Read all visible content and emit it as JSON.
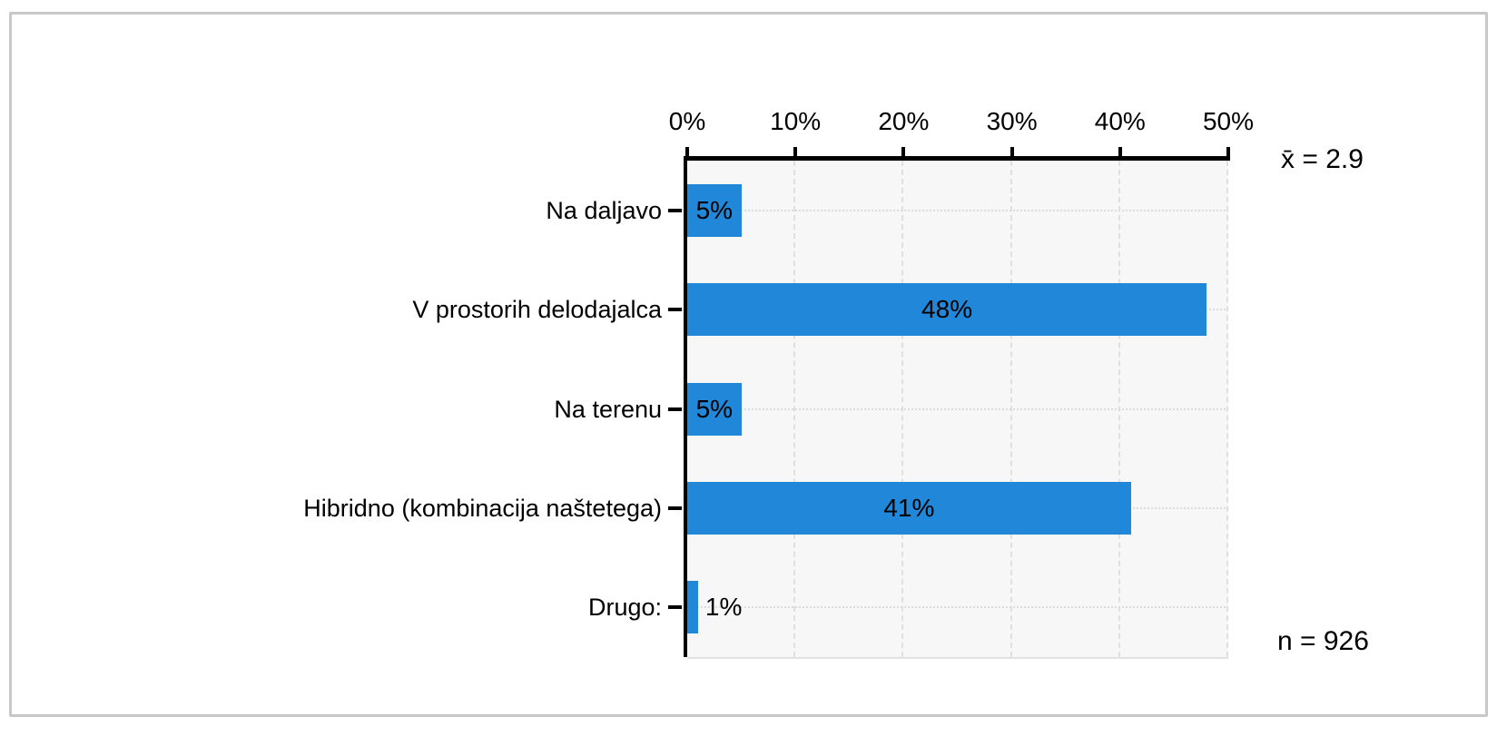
{
  "chart_data": {
    "type": "bar",
    "orientation": "horizontal",
    "title": "",
    "categories": [
      "Na daljavo",
      "V prostorih delodajalca",
      "Na terenu",
      "Hibridno (kombinacija naštetega)",
      "Drugo:"
    ],
    "values": [
      5,
      48,
      5,
      41,
      1
    ],
    "value_labels": [
      "5%",
      "48%",
      "5%",
      "41%",
      "1%"
    ],
    "xlim": [
      0,
      50
    ],
    "x_tick_values": [
      0,
      10,
      20,
      30,
      40,
      50
    ],
    "x_tick_labels": [
      "0%",
      "10%",
      "20%",
      "30%",
      "40%",
      "50%"
    ],
    "grid": true,
    "legend_position": "none",
    "bar_color": "#2187d8",
    "plot_bg_color": "#f7f7f7",
    "annotations": {
      "mean": "x̄ = 2.9",
      "n": "n = 926"
    }
  }
}
